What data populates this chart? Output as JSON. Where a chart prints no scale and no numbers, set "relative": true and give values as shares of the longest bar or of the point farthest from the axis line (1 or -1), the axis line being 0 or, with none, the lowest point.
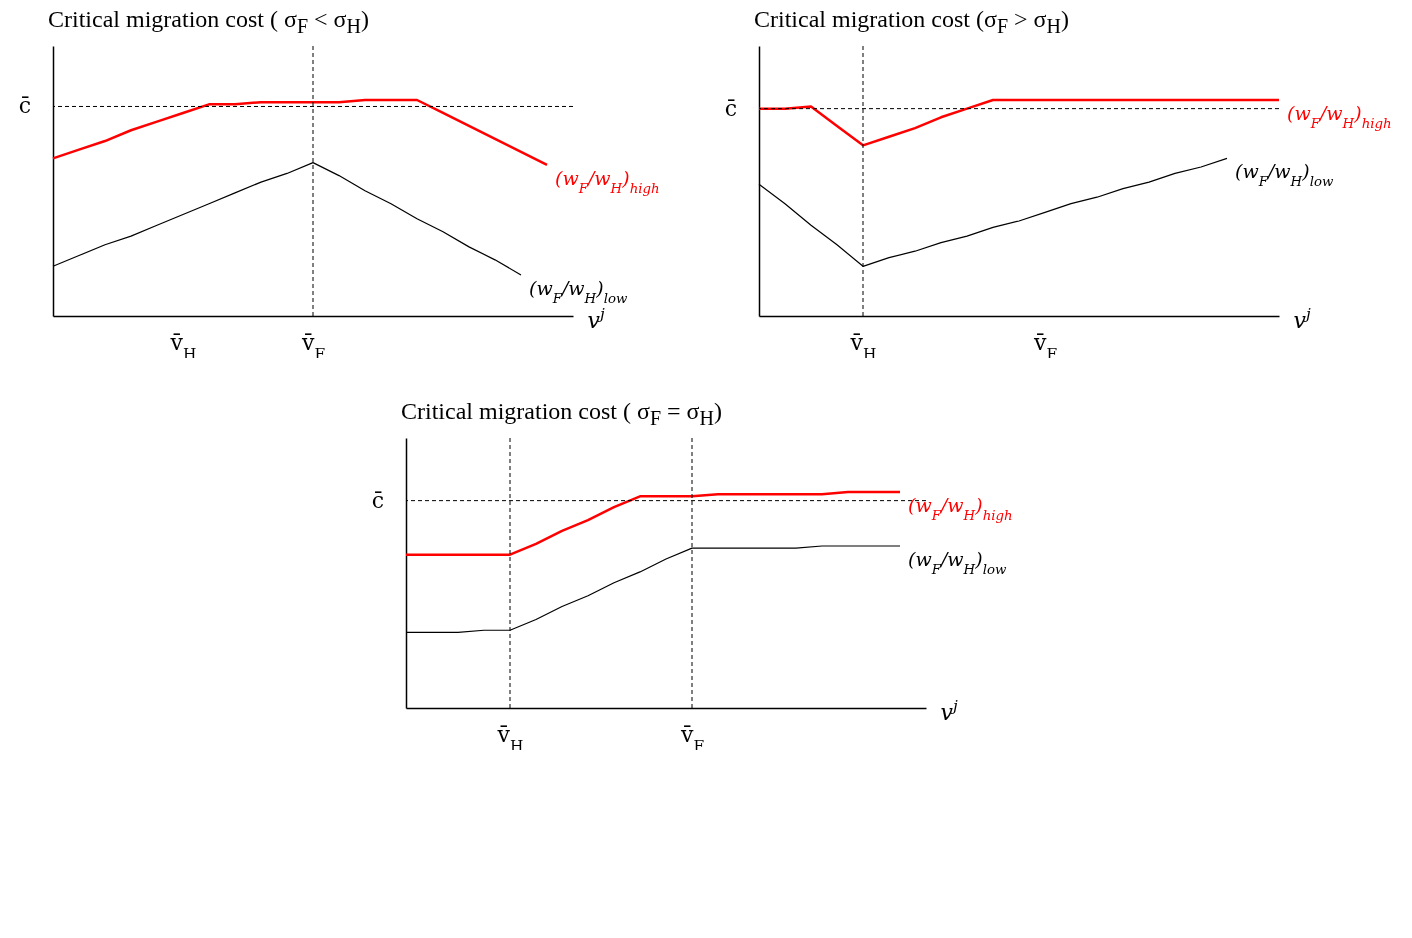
{
  "chart_data": [
    {
      "type": "line",
      "title": "Critical migration cost ( σ$_{F}$ < σ$_{H}$)",
      "xlabel": "v$^{j}$",
      "relative": true,
      "categories": [
        null,
        null,
        null,
        null,
        null,
        "v̄$_{H}$",
        null,
        null,
        null,
        null,
        "v̄$_{F}$",
        null,
        null,
        null,
        null,
        null,
        null,
        null,
        null,
        null,
        null
      ],
      "series": [
        {
          "name": "(w$_{F}$/w$_{H}$)$_{high}$",
          "color": "#ff0000",
          "values": [
            0.73,
            0.77,
            0.81,
            0.86,
            0.9,
            0.94,
            0.98,
            0.98,
            0.99,
            0.99,
            0.99,
            0.99,
            1.0,
            1.0,
            1.0,
            0.94,
            0.88,
            0.82,
            0.76,
            0.7,
            null
          ]
        },
        {
          "name": "(w$_{F}$/w$_{H}$)$_{low}$",
          "color": "#000000",
          "values": [
            0.23,
            0.28,
            0.33,
            0.37,
            0.42,
            0.47,
            0.52,
            0.57,
            0.62,
            0.66,
            0.71,
            0.65,
            0.58,
            0.52,
            0.45,
            0.39,
            0.32,
            0.26,
            0.19,
            null,
            null
          ]
        }
      ],
      "ref_lines": [
        {
          "axis": "y",
          "value": 0.97,
          "label": "c̄"
        },
        {
          "axis": "x",
          "value": "v̄$_{F}$",
          "label": null
        }
      ]
    },
    {
      "type": "line",
      "title": "Critical migration cost  (σ$_{F}$ > σ$_{H}$)",
      "xlabel": "v$^{j}$",
      "relative": true,
      "categories": [
        null,
        null,
        null,
        null,
        "v̄$_{H}$",
        null,
        null,
        null,
        null,
        null,
        null,
        "v̄$_{F}$",
        null,
        null,
        null,
        null,
        null,
        null,
        null,
        null,
        null
      ],
      "series": [
        {
          "name": "(w$_{F}$/w$_{H}$)$_{high}$",
          "color": "#ff0000",
          "values": [
            0.96,
            0.96,
            0.97,
            0.88,
            0.79,
            0.83,
            0.87,
            0.92,
            0.96,
            1.0,
            1.0,
            1.0,
            1.0,
            1.0,
            1.0,
            1.0,
            1.0,
            1.0,
            1.0,
            1.0,
            1.0
          ]
        },
        {
          "name": "(w$_{F}$/w$_{H}$)$_{low}$",
          "color": "#000000",
          "values": [
            0.61,
            0.52,
            0.42,
            0.33,
            0.23,
            0.27,
            0.3,
            0.34,
            0.37,
            0.41,
            0.44,
            0.48,
            0.52,
            0.55,
            0.59,
            0.62,
            0.66,
            0.69,
            0.73,
            null,
            null
          ]
        }
      ],
      "ref_lines": [
        {
          "axis": "y",
          "value": 0.96,
          "label": "c̄"
        },
        {
          "axis": "x",
          "value": "v̄$_{H}$",
          "label": null
        }
      ]
    },
    {
      "type": "line",
      "title": "Critical migration cost  ( σ$_{F}$ = σ$_{H}$)",
      "xlabel": "v$^{j}$",
      "relative": true,
      "categories": [
        null,
        null,
        null,
        null,
        "v̄$_{H}$",
        null,
        null,
        null,
        null,
        null,
        null,
        "v̄$_{F}$",
        null,
        null,
        null,
        null,
        null,
        null,
        null,
        null,
        null
      ],
      "series": [
        {
          "name": "(w$_{F}$/w$_{H}$)$_{high}$",
          "color": "#ff0000",
          "values": [
            0.71,
            0.71,
            0.71,
            0.71,
            0.71,
            0.76,
            0.82,
            0.87,
            0.93,
            0.98,
            0.98,
            0.98,
            0.99,
            0.99,
            0.99,
            0.99,
            0.99,
            1.0,
            1.0,
            1.0,
            null
          ]
        },
        {
          "name": "(w$_{F}$/w$_{H}$)$_{low}$",
          "color": "#000000",
          "values": [
            0.35,
            0.35,
            0.35,
            0.36,
            0.36,
            0.41,
            0.47,
            0.52,
            0.58,
            0.63,
            0.69,
            0.74,
            0.74,
            0.74,
            0.74,
            0.74,
            0.75,
            0.75,
            0.75,
            0.75,
            null
          ]
        }
      ],
      "ref_lines": [
        {
          "axis": "y",
          "value": 0.96,
          "label": "c̄"
        },
        {
          "axis": "x",
          "value": "v̄$_{H}$",
          "label": null
        },
        {
          "axis": "x",
          "value": "v̄$_{F}$",
          "label": null
        }
      ]
    }
  ]
}
